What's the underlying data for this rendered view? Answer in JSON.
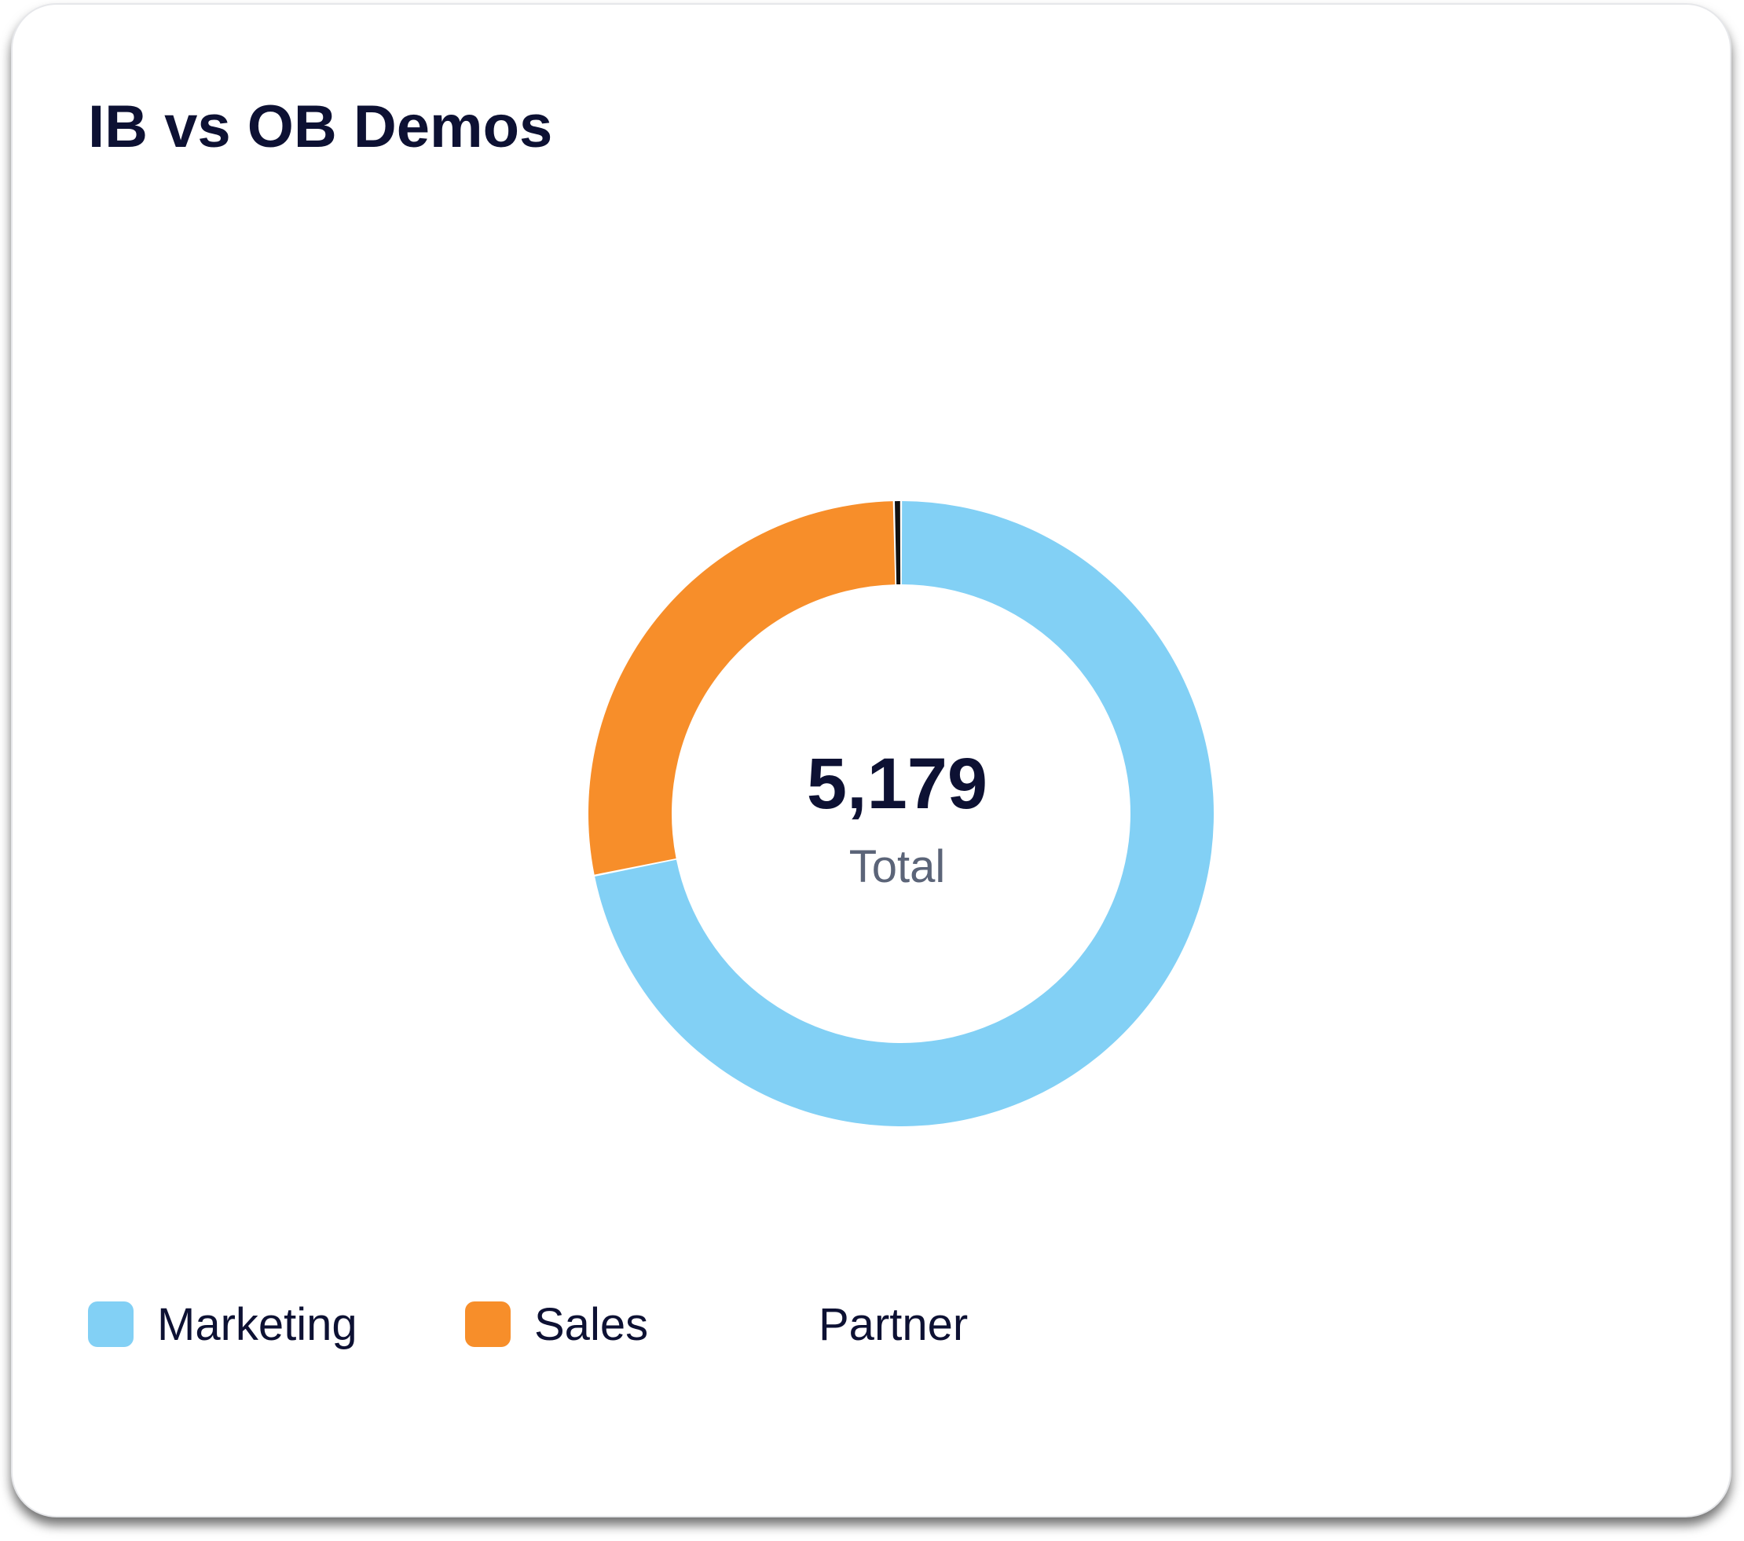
{
  "card": {
    "title": "IB vs OB Demos"
  },
  "summary": {
    "total_value": "5,179",
    "total_label": "Total"
  },
  "legend": [
    {
      "label": "Marketing",
      "color": "#82d0f5",
      "show_swatch": true
    },
    {
      "label": "Sales",
      "color": "#f78e2a",
      "show_swatch": true
    },
    {
      "label": "Partner",
      "color": "#111111",
      "show_swatch": false
    }
  ],
  "chart_data": {
    "type": "pie",
    "donut": true,
    "title": "IB vs OB Demos",
    "categories": [
      "Marketing",
      "Sales",
      "Partner"
    ],
    "values": [
      3720,
      1440,
      19
    ],
    "colors": [
      "#82d0f5",
      "#f78e2a",
      "#111111"
    ],
    "total": 5179,
    "legend_position": "bottom-left"
  }
}
